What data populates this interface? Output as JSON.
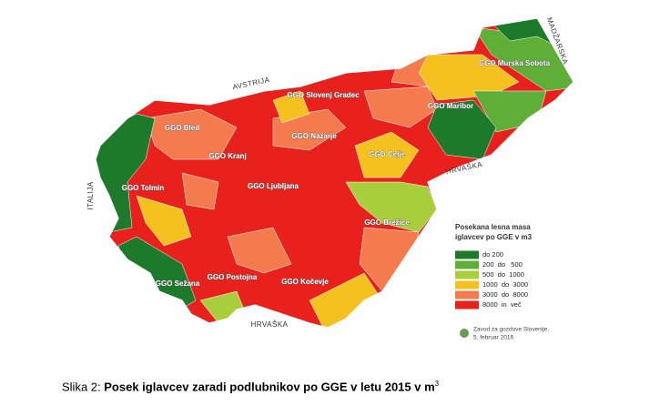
{
  "map": {
    "regions": [
      {
        "label": "GGO Slovenj Gradec"
      },
      {
        "label": "GGO Murska Sobota"
      },
      {
        "label": "GGO Maribor"
      },
      {
        "label": "GGO Bled"
      },
      {
        "label": "GGO Nazarje"
      },
      {
        "label": "GGO Celje"
      },
      {
        "label": "GGO Kranj"
      },
      {
        "label": "GGO Tolmin"
      },
      {
        "label": "GGO Ljubljana"
      },
      {
        "label": "GGO Brežice"
      },
      {
        "label": "GGO Postojna"
      },
      {
        "label": "GGO Sežana"
      },
      {
        "label": "GGO Kočevje"
      }
    ],
    "neighbours": [
      "AVSTRIJA",
      "MADŽARSKA",
      "HRVAŠKA",
      "HRVAŠKA",
      "ITALIJA"
    ]
  },
  "legend": {
    "title": [
      "Posekana lesna masa",
      "iglavcev po GGE v m3"
    ],
    "items": [
      {
        "label": "do 200",
        "color": "#1d7a2b"
      },
      {
        "label": "200  do   500",
        "color": "#5eae37"
      },
      {
        "label": "500  do  1000",
        "color": "#a8cf3b"
      },
      {
        "label": "1000  do  3000",
        "color": "#f5c11f"
      },
      {
        "label": "3000  do  8000",
        "color": "#f47b4e"
      },
      {
        "label": "8000  in  več",
        "color": "#e8211d"
      }
    ]
  },
  "source": [
    "Zavod za gozdove Slovenije,",
    "5. februar 2016"
  ],
  "caption": {
    "prefix": "Slika 2: ",
    "title": "Posek iglavcev zaradi podlubnikov po GGE v letu 2015 v m",
    "sup": "3"
  }
}
